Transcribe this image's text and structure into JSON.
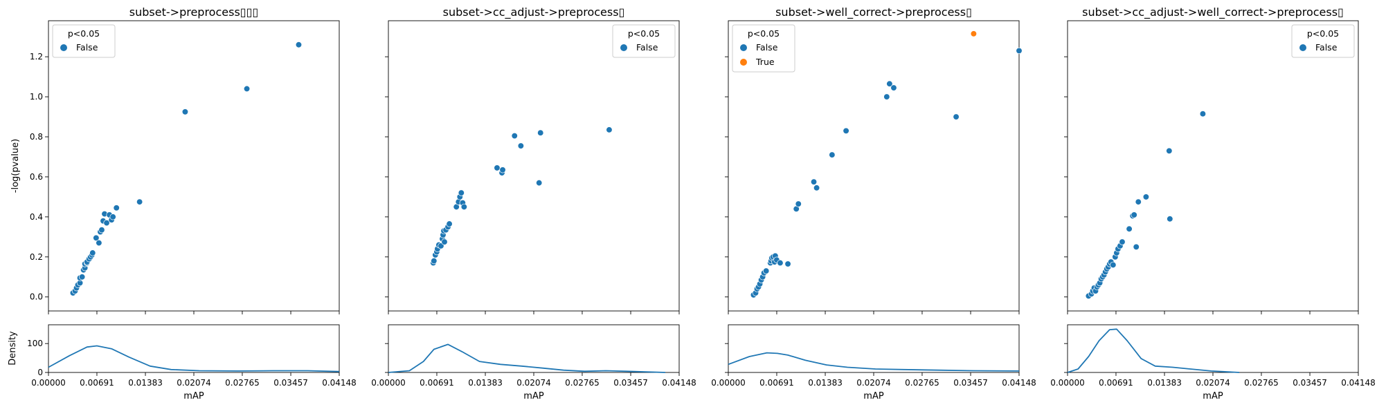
{
  "figure": {
    "shared_ylabel": "-log(pvalue)",
    "density_ylabel": "Density",
    "xlabel": "mAP",
    "x_ticks": [
      "0.00000",
      "0.00691",
      "0.01383",
      "0.02074",
      "0.02765",
      "0.03457",
      "0.04148"
    ],
    "y_ticks": [
      "0.0",
      "0.2",
      "0.4",
      "0.6",
      "0.8",
      "1.0",
      "1.2"
    ],
    "density_ticks": [
      "0",
      "100"
    ],
    "legend_title": "p<0.05",
    "colors": {
      "False": "#1f77b4",
      "True": "#ff7f0e"
    }
  },
  "chart_data": [
    {
      "type": "scatter",
      "title": "subset->preprocess▯▯▯",
      "xlabel": "mAP",
      "ylabel": "-log(pvalue)",
      "xlim": [
        0,
        0.04148
      ],
      "ylim": [
        -0.07,
        1.38
      ],
      "legend": {
        "title": "p<0.05",
        "placement": "upper-left",
        "entries": [
          "False"
        ]
      },
      "series": [
        {
          "name": "False",
          "points": [
            [
              0.0035,
              0.02
            ],
            [
              0.0038,
              0.03
            ],
            [
              0.004,
              0.045
            ],
            [
              0.0042,
              0.06
            ],
            [
              0.0045,
              0.07
            ],
            [
              0.0045,
              0.095
            ],
            [
              0.0048,
              0.1
            ],
            [
              0.005,
              0.135
            ],
            [
              0.0052,
              0.145
            ],
            [
              0.0052,
              0.165
            ],
            [
              0.0055,
              0.17
            ],
            [
              0.0055,
              0.175
            ],
            [
              0.0058,
              0.19
            ],
            [
              0.006,
              0.2
            ],
            [
              0.0062,
              0.21
            ],
            [
              0.0063,
              0.22
            ],
            [
              0.0068,
              0.295
            ],
            [
              0.0072,
              0.27
            ],
            [
              0.0074,
              0.325
            ],
            [
              0.0076,
              0.335
            ],
            [
              0.0078,
              0.38
            ],
            [
              0.008,
              0.415
            ],
            [
              0.0083,
              0.37
            ],
            [
              0.0087,
              0.41
            ],
            [
              0.009,
              0.385
            ],
            [
              0.0092,
              0.4
            ],
            [
              0.0097,
              0.445
            ],
            [
              0.013,
              0.475
            ],
            [
              0.0195,
              0.925
            ],
            [
              0.0283,
              1.04
            ],
            [
              0.0357,
              1.26
            ]
          ]
        }
      ],
      "density": {
        "ylim": [
          0,
          165
        ],
        "x": [
          0,
          0.003,
          0.0055,
          0.0069,
          0.009,
          0.0115,
          0.0145,
          0.0175,
          0.0215,
          0.027,
          0.032,
          0.037,
          0.04148
        ],
        "y": [
          18,
          58,
          88,
          92,
          82,
          53,
          22,
          10,
          6,
          5,
          6,
          6,
          3
        ]
      }
    },
    {
      "type": "scatter",
      "title": "subset->cc_adjust->preprocess▯",
      "xlabel": "mAP",
      "ylabel": "-log(pvalue)",
      "xlim": [
        0,
        0.04148
      ],
      "ylim": [
        -0.07,
        1.38
      ],
      "legend": {
        "title": "p<0.05",
        "placement": "upper-right",
        "entries": [
          "False"
        ]
      },
      "series": [
        {
          "name": "False",
          "points": [
            [
              0.0064,
              0.17
            ],
            [
              0.0065,
              0.18
            ],
            [
              0.0067,
              0.21
            ],
            [
              0.0069,
              0.225
            ],
            [
              0.007,
              0.24
            ],
            [
              0.0072,
              0.26
            ],
            [
              0.0075,
              0.255
            ],
            [
              0.0077,
              0.29
            ],
            [
              0.0078,
              0.31
            ],
            [
              0.0079,
              0.33
            ],
            [
              0.008,
              0.275
            ],
            [
              0.0082,
              0.335
            ],
            [
              0.0085,
              0.35
            ],
            [
              0.0087,
              0.365
            ],
            [
              0.0097,
              0.45
            ],
            [
              0.01,
              0.475
            ],
            [
              0.0102,
              0.5
            ],
            [
              0.0104,
              0.52
            ],
            [
              0.0106,
              0.47
            ],
            [
              0.0108,
              0.45
            ],
            [
              0.0155,
              0.645
            ],
            [
              0.0162,
              0.62
            ],
            [
              0.0163,
              0.635
            ],
            [
              0.018,
              0.805
            ],
            [
              0.0189,
              0.755
            ],
            [
              0.0215,
              0.57
            ],
            [
              0.0217,
              0.82
            ],
            [
              0.0315,
              0.835
            ]
          ]
        }
      ],
      "density": {
        "ylim": [
          0,
          165
        ],
        "x": [
          0,
          0.003,
          0.005,
          0.0065,
          0.0085,
          0.0105,
          0.013,
          0.016,
          0.019,
          0.022,
          0.025,
          0.028,
          0.031,
          0.034,
          0.0395
        ],
        "y": [
          0,
          6,
          38,
          80,
          97,
          72,
          38,
          28,
          22,
          15,
          8,
          4,
          6,
          4,
          0
        ]
      }
    },
    {
      "type": "scatter",
      "title": "subset->well_correct->preprocess▯",
      "xlabel": "mAP",
      "ylabel": "-log(pvalue)",
      "xlim": [
        0,
        0.04148
      ],
      "ylim": [
        -0.07,
        1.38
      ],
      "legend": {
        "title": "p<0.05",
        "placement": "upper-left",
        "entries": [
          "False",
          "True"
        ]
      },
      "series": [
        {
          "name": "False",
          "points": [
            [
              0.0036,
              0.01
            ],
            [
              0.0039,
              0.02
            ],
            [
              0.0041,
              0.04
            ],
            [
              0.0043,
              0.05
            ],
            [
              0.0045,
              0.065
            ],
            [
              0.0047,
              0.085
            ],
            [
              0.0049,
              0.1
            ],
            [
              0.0051,
              0.12
            ],
            [
              0.0054,
              0.13
            ],
            [
              0.006,
              0.17
            ],
            [
              0.0061,
              0.18
            ],
            [
              0.0062,
              0.195
            ],
            [
              0.0064,
              0.2
            ],
            [
              0.0066,
              0.175
            ],
            [
              0.0067,
              0.205
            ],
            [
              0.0069,
              0.185
            ],
            [
              0.0074,
              0.17
            ],
            [
              0.0085,
              0.165
            ],
            [
              0.0097,
              0.44
            ],
            [
              0.01,
              0.465
            ],
            [
              0.0122,
              0.575
            ],
            [
              0.0126,
              0.545
            ],
            [
              0.0148,
              0.71
            ],
            [
              0.0168,
              0.83
            ],
            [
              0.0226,
              1.0
            ],
            [
              0.023,
              1.065
            ],
            [
              0.0236,
              1.045
            ],
            [
              0.0325,
              0.9
            ],
            [
              0.04148,
              1.23
            ]
          ]
        },
        {
          "name": "True",
          "points": [
            [
              0.035,
              1.315
            ]
          ]
        }
      ],
      "density": {
        "ylim": [
          0,
          165
        ],
        "x": [
          0,
          0.003,
          0.0055,
          0.007,
          0.0085,
          0.011,
          0.014,
          0.017,
          0.021,
          0.025,
          0.03,
          0.035,
          0.04148
        ],
        "y": [
          28,
          55,
          68,
          66,
          60,
          42,
          26,
          18,
          12,
          10,
          8,
          6,
          5
        ]
      }
    },
    {
      "type": "scatter",
      "title": "subset->cc_adjust->well_correct->preprocess▯",
      "xlabel": "mAP",
      "ylabel": "-log(pvalue)",
      "xlim": [
        0,
        0.04148
      ],
      "ylim": [
        -0.07,
        1.38
      ],
      "legend": {
        "title": "p<0.05",
        "placement": "upper-right",
        "entries": [
          "False"
        ]
      },
      "series": [
        {
          "name": "False",
          "points": [
            [
              0.003,
              0.005
            ],
            [
              0.0034,
              0.015
            ],
            [
              0.0036,
              0.03
            ],
            [
              0.0038,
              0.045
            ],
            [
              0.004,
              0.03
            ],
            [
              0.0042,
              0.05
            ],
            [
              0.0044,
              0.06
            ],
            [
              0.0046,
              0.07
            ],
            [
              0.0048,
              0.09
            ],
            [
              0.005,
              0.1
            ],
            [
              0.0052,
              0.11
            ],
            [
              0.0054,
              0.125
            ],
            [
              0.0056,
              0.14
            ],
            [
              0.0058,
              0.15
            ],
            [
              0.006,
              0.165
            ],
            [
              0.0062,
              0.175
            ],
            [
              0.0065,
              0.16
            ],
            [
              0.0068,
              0.2
            ],
            [
              0.007,
              0.22
            ],
            [
              0.0072,
              0.24
            ],
            [
              0.0075,
              0.255
            ],
            [
              0.0078,
              0.275
            ],
            [
              0.0088,
              0.34
            ],
            [
              0.0093,
              0.405
            ],
            [
              0.0095,
              0.41
            ],
            [
              0.0098,
              0.25
            ],
            [
              0.0101,
              0.475
            ],
            [
              0.0112,
              0.5
            ],
            [
              0.0145,
              0.73
            ],
            [
              0.0146,
              0.39
            ],
            [
              0.0193,
              0.915
            ]
          ]
        }
      ],
      "density": {
        "ylim": [
          0,
          165
        ],
        "x": [
          0,
          0.0015,
          0.003,
          0.0045,
          0.006,
          0.007,
          0.0085,
          0.0105,
          0.0125,
          0.015,
          0.0175,
          0.0205,
          0.0245,
          0.0245
        ],
        "y": [
          0,
          12,
          55,
          110,
          148,
          150,
          110,
          48,
          22,
          18,
          12,
          5,
          0,
          0
        ]
      }
    }
  ]
}
